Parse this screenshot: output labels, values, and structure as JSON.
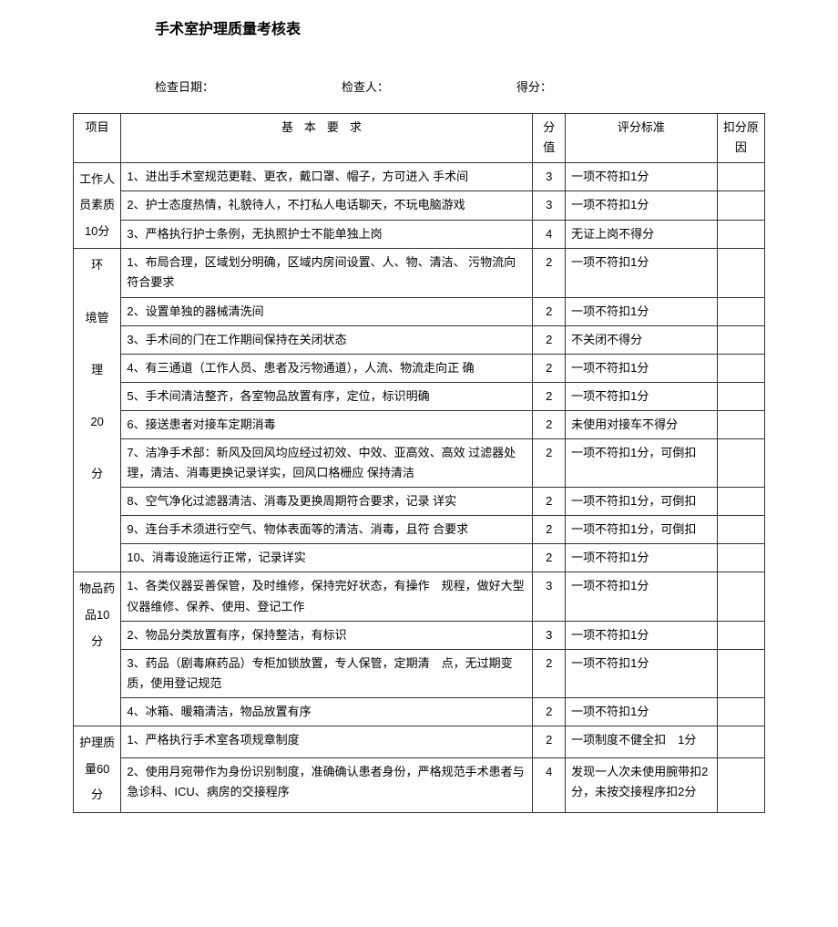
{
  "title": "手术室护理质量考核表",
  "meta": {
    "date_label": "检查日期：",
    "inspector_label": "检查人：",
    "score_label": "得分：",
    "date_value": "",
    "inspector_value": "",
    "score_value": ""
  },
  "headers": {
    "category": "项目",
    "requirement": "基本要求",
    "score": "分值",
    "standard": "评分标准",
    "reason": "扣分原因"
  },
  "sections": [
    {
      "category": "工作人员素质10分",
      "rowspan": 3,
      "rows": [
        {
          "req": "1、进出手术室规范更鞋、更衣，戴口罩、帽子，方可进入 手术间",
          "score": "3",
          "std": "一项不符扣1分",
          "reason": ""
        },
        {
          "req": "2、护士态度热情，礼貌待人，不打私人电话聊天，不玩电脑游戏",
          "score": "3",
          "std": "一项不符扣1分",
          "reason": ""
        },
        {
          "req": "3、严格执行护士条例，无执照护士不能单独上岗",
          "score": "4",
          "std": "无证上岗不得分",
          "reason": ""
        }
      ]
    },
    {
      "category": "环\n\n境管\n\n理\n\n20\n\n分",
      "rowspan": 10,
      "rows": [
        {
          "req": "1、布局合理，区域划分明确，区域内房间设置、人、物、清洁、 污物流向符合要求",
          "score": "2",
          "std": "一项不符扣1分",
          "reason": ""
        },
        {
          "req": "2、设置单独的器械清洗间",
          "score": "2",
          "std": "一项不符扣1分",
          "reason": ""
        },
        {
          "req": "3、手术间的门在工作期间保持在关闭状态",
          "score": "2",
          "std": "不关闭不得分",
          "reason": ""
        },
        {
          "req": "4、有三通道（工作人员、患者及污物通道），人流、物流走向正 确",
          "score": "2",
          "std": "一项不符扣1分",
          "reason": ""
        },
        {
          "req": "5、手术间清洁整齐，各室物品放置有序，定位，标识明确",
          "score": "2",
          "std": "一项不符扣1分",
          "reason": ""
        },
        {
          "req": "6、接送患者对接车定期消毒",
          "score": "2",
          "std": "未使用对接车不得分",
          "reason": ""
        },
        {
          "req": "7、洁净手术部：新风及回风均应经过初效、中效、亚高效、高效 过滤器处理，清洁、消毒更换记录详实，回风口格栅应 保持清洁",
          "score": "2",
          "std": "一项不符扣1分，可倒扣",
          "reason": ""
        },
        {
          "req": "8、空气净化过滤器清洁、消毒及更换周期符合要求，记录 详实",
          "score": "2",
          "std": "一项不符扣1分，可倒扣",
          "reason": ""
        },
        {
          "req": "9、连台手术须进行空气、物体表面等的清洁、消毒，且符 合要求",
          "score": "2",
          "std": "一项不符扣1分，可倒扣",
          "reason": ""
        },
        {
          "req": "10、消毒设施运行正常，记录详实",
          "score": "2",
          "std": "一项不符扣1分",
          "reason": ""
        }
      ]
    },
    {
      "category": "物品药品10分",
      "rowspan": 4,
      "rows": [
        {
          "req": "1、各类仪器妥善保管，及时维修，保持完好状态，有操作　规程，做好大型仪器维修、保养、使用、登记工作",
          "score": "3",
          "std": "一项不符扣1分",
          "reason": ""
        },
        {
          "req": "2、物品分类放置有序，保持整洁，有标识",
          "score": "3",
          "std": "一项不符扣1分",
          "reason": ""
        },
        {
          "req": "3、药品（剧毒麻药品）专柜加锁放置，专人保管，定期清　点，无过期变质，使用登记规范",
          "score": "2",
          "std": "一项不符扣1分",
          "reason": ""
        },
        {
          "req": "4、冰箱、暖箱清洁，物品放置有序",
          "score": "2",
          "std": "一项不符扣1分",
          "reason": ""
        }
      ]
    },
    {
      "category": "护理质量60分",
      "rowspan": 2,
      "rows": [
        {
          "req": "1、严格执行手术室各项规章制度",
          "score": "2",
          "std": "一项制度不健全扣　1分",
          "reason": ""
        },
        {
          "req": "2、使用月宛带作为身份识别制度，准确确认患者身份，严格规范手术患者与急诊科、ICU、病房的交接程序",
          "score": "4",
          "std": "发现一人次未使用腕带扣2分，未按交接程序扣2分",
          "reason": ""
        }
      ]
    }
  ]
}
